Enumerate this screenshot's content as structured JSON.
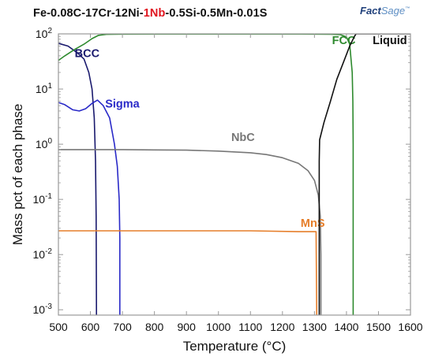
{
  "chart_data": {
    "type": "line",
    "title_parts": [
      {
        "text": "Fe-0.08C-17Cr-12Ni-",
        "color": "#111111"
      },
      {
        "text": "1Nb",
        "color": "#e0141e"
      },
      {
        "text": "-0.5Si-0.5Mn-0.01S",
        "color": "#111111"
      }
    ],
    "logo": {
      "main": "Fact",
      "sub": "Sage",
      "tm": "™"
    },
    "xlabel": "Temperature (°C)",
    "ylabel": "Mass pct of each phase",
    "xlim": [
      500,
      1600
    ],
    "ylog": true,
    "ylim": [
      0.0008,
      100
    ],
    "xticks": [
      500,
      600,
      700,
      800,
      900,
      1000,
      1100,
      1200,
      1300,
      1400,
      1500,
      1600
    ],
    "yticks": [
      {
        "value": 100,
        "base": "10",
        "exp": "2"
      },
      {
        "value": 10,
        "base": "10",
        "exp": "1"
      },
      {
        "value": 1,
        "base": "10",
        "exp": "0"
      },
      {
        "value": 0.1,
        "base": "10",
        "exp": "-1"
      },
      {
        "value": 0.01,
        "base": "10",
        "exp": "-2"
      },
      {
        "value": 0.001,
        "base": "10",
        "exp": "-3"
      }
    ],
    "grid": false,
    "series": [
      {
        "name": "BCC",
        "color": "#1a1a6e",
        "label_at": [
          551,
          38
        ],
        "points": [
          [
            490,
            70
          ],
          [
            530,
            60
          ],
          [
            560,
            45
          ],
          [
            580,
            35
          ],
          [
            595,
            20
          ],
          [
            605,
            10
          ],
          [
            612,
            3
          ],
          [
            616,
            0.5
          ],
          [
            618,
            0.05
          ],
          [
            619,
            0.001
          ],
          [
            619,
            0.0008
          ]
        ]
      },
      {
        "name": "Sigma",
        "color": "#2a2ac8",
        "label_at": [
          646,
          4.6
        ],
        "points": [
          [
            490,
            6
          ],
          [
            520,
            5.2
          ],
          [
            545,
            4.2
          ],
          [
            565,
            4.0
          ],
          [
            585,
            4.4
          ],
          [
            605,
            5.5
          ],
          [
            622,
            6.3
          ],
          [
            640,
            5
          ],
          [
            660,
            3
          ],
          [
            675,
            1
          ],
          [
            684,
            0.4
          ],
          [
            690,
            0.1
          ],
          [
            692,
            0.02
          ],
          [
            692,
            0.001
          ],
          [
            692,
            0.0008
          ]
        ]
      },
      {
        "name": "FCC",
        "color": "#2e8a2e",
        "label_at": [
          1355,
          65
        ],
        "points": [
          [
            490,
            30
          ],
          [
            520,
            40
          ],
          [
            550,
            52
          ],
          [
            580,
            65
          ],
          [
            605,
            82
          ],
          [
            625,
            94
          ],
          [
            650,
            98
          ],
          [
            700,
            99
          ],
          [
            800,
            99.3
          ],
          [
            1000,
            99.4
          ],
          [
            1200,
            99.4
          ],
          [
            1300,
            99
          ],
          [
            1350,
            98.5
          ],
          [
            1380,
            97
          ],
          [
            1400,
            88
          ],
          [
            1410,
            65
          ],
          [
            1418,
            20
          ],
          [
            1420,
            6
          ],
          [
            1421,
            1
          ],
          [
            1421,
            0.1
          ],
          [
            1421,
            0.001
          ],
          [
            1421,
            0.0008
          ]
        ]
      },
      {
        "name": "NbC",
        "color": "#777777",
        "label_at": [
          1040,
          1.15
        ],
        "points": [
          [
            490,
            0.8
          ],
          [
            600,
            0.8
          ],
          [
            700,
            0.8
          ],
          [
            800,
            0.79
          ],
          [
            900,
            0.78
          ],
          [
            1000,
            0.75
          ],
          [
            1100,
            0.7
          ],
          [
            1150,
            0.65
          ],
          [
            1200,
            0.57
          ],
          [
            1250,
            0.45
          ],
          [
            1280,
            0.33
          ],
          [
            1300,
            0.22
          ],
          [
            1312,
            0.12
          ],
          [
            1318,
            0.05
          ],
          [
            1320,
            0.01
          ],
          [
            1320,
            0.001
          ],
          [
            1320,
            0.0008
          ]
        ]
      },
      {
        "name": "MnS",
        "color": "#e67e2a",
        "label_at": [
          1257,
          0.032
        ],
        "points": [
          [
            490,
            0.027
          ],
          [
            700,
            0.027
          ],
          [
            900,
            0.027
          ],
          [
            1100,
            0.027
          ],
          [
            1250,
            0.026
          ],
          [
            1305,
            0.026
          ],
          [
            1307,
            0.001
          ],
          [
            1307,
            0.0008
          ]
        ]
      },
      {
        "name": "Liquid",
        "color": "#111111",
        "label_at": [
          1482,
          65
        ],
        "points": [
          [
            1315,
            0.0008
          ],
          [
            1315,
            0.001
          ],
          [
            1315,
            0.5
          ],
          [
            1316,
            1.2
          ],
          [
            1330,
            2.5
          ],
          [
            1350,
            6
          ],
          [
            1370,
            15
          ],
          [
            1390,
            30
          ],
          [
            1410,
            60
          ],
          [
            1425,
            90
          ],
          [
            1430,
            100
          ],
          [
            1600,
            100
          ]
        ]
      }
    ]
  }
}
